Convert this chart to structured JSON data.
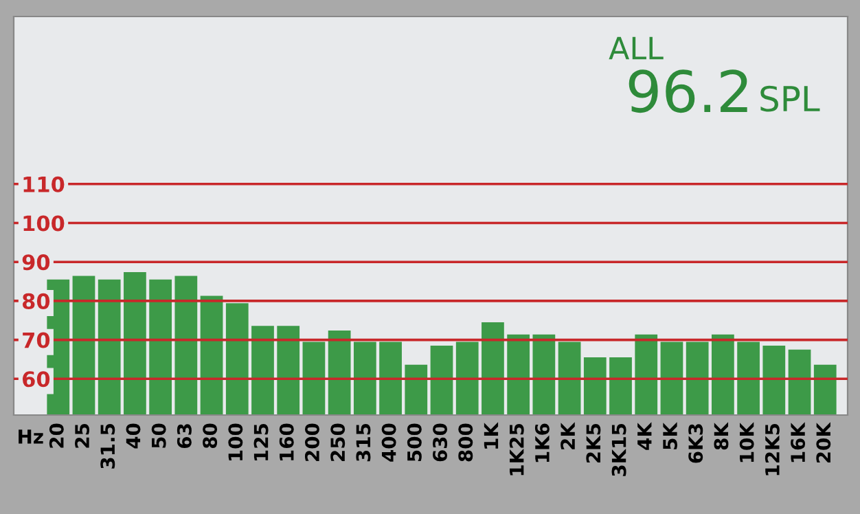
{
  "chart_data": {
    "type": "bar",
    "xlabel": "Hz",
    "categories": [
      "20",
      "25",
      "31.5",
      "40",
      "50",
      "63",
      "80",
      "100",
      "125",
      "160",
      "200",
      "250",
      "315",
      "400",
      "500",
      "630",
      "800",
      "1K",
      "1K25",
      "1K6",
      "2K",
      "2K5",
      "3K15",
      "4K",
      "5K",
      "6K3",
      "8K",
      "10K",
      "12K5",
      "16K",
      "20K"
    ],
    "values": [
      85.5,
      86.4,
      85.5,
      87.4,
      85.5,
      86.4,
      81.3,
      79.4,
      73.6,
      73.6,
      69.5,
      72.4,
      69.5,
      69.5,
      63.6,
      68.5,
      69.5,
      74.5,
      71.4,
      71.4,
      69.5,
      65.5,
      65.5,
      71.4,
      69.5,
      69.5,
      71.4,
      69.5,
      68.5,
      67.5,
      63.6
    ],
    "color": "#3d9a48",
    "ylim": [
      50.7,
      153
    ],
    "yticks": [
      60,
      70,
      80,
      90,
      100,
      110
    ],
    "grid": "y",
    "annotations": [
      "ALL",
      "96.2",
      "SPL"
    ]
  }
}
